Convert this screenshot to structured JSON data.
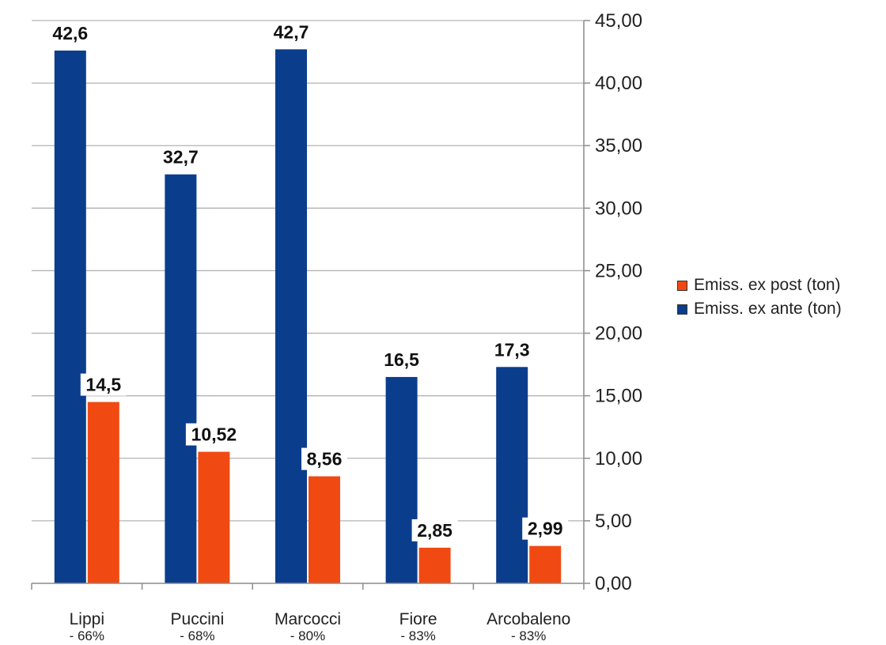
{
  "chart_data": {
    "type": "bar",
    "categories": [
      "Lippi",
      "Puccini",
      "Marcocci",
      "Fiore",
      "Arcobaleno"
    ],
    "category_sublabels": [
      "- 66%",
      "- 68%",
      "- 80%",
      "- 83%",
      "- 83%"
    ],
    "series": [
      {
        "name": "Emiss. ex ante (ton)",
        "color": "#0a3d8c",
        "values": [
          42.6,
          32.7,
          42.7,
          16.5,
          17.3
        ],
        "labels": [
          "42,6",
          "32,7",
          "42,7",
          "16,5",
          "17,3"
        ]
      },
      {
        "name": "Emiss. ex post (ton)",
        "color": "#f04a12",
        "values": [
          14.5,
          10.52,
          8.56,
          2.85,
          2.99
        ],
        "labels": [
          "14,5",
          "10,52",
          "8,56",
          "2,85",
          "2,99"
        ]
      }
    ],
    "legend_order": [
      1,
      0
    ],
    "legend_position": "right",
    "y_axis_side": "right",
    "ylim": [
      0,
      45
    ],
    "yticks": [
      0,
      5,
      10,
      15,
      20,
      25,
      30,
      35,
      40,
      45
    ],
    "ytick_labels": [
      "0,00",
      "5,00",
      "10,00",
      "15,00",
      "20,00",
      "25,00",
      "30,00",
      "35,00",
      "40,00",
      "45,00"
    ],
    "grid": true,
    "title": "",
    "xlabel": "",
    "ylabel": ""
  }
}
